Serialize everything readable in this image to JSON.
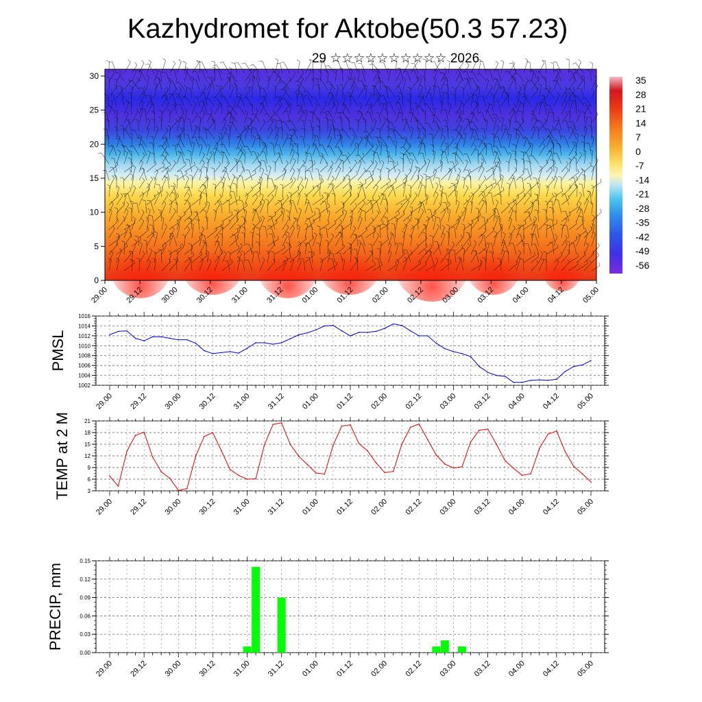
{
  "title": "Kazhydromet for Aktobe(50.3 57.23)",
  "subtitle": "29 ☆☆☆☆☆☆☆☆☆☆ 2026",
  "time_labels": [
    "29.00",
    "29.12",
    "30.00",
    "30.12",
    "31.00",
    "31.12",
    "01.00",
    "01.12",
    "02.00",
    "02.12",
    "03.00",
    "03.12",
    "04.00",
    "04.12",
    "05.00"
  ],
  "chart_data": [
    {
      "type": "heatmap",
      "description_key": "vertical-profile",
      "yticks": [
        0,
        5,
        10,
        15,
        20,
        25,
        30
      ],
      "ylim": [
        0,
        31
      ],
      "colorbar_labels": [
        "35",
        "28",
        "21",
        "14",
        "7",
        "0",
        "-7",
        "-14",
        "-21",
        "-28",
        "-35",
        "-42",
        "-49",
        "-56"
      ],
      "colorbar_range": [
        -60,
        38
      ]
    },
    {
      "type": "line",
      "ylabel": "PMSL",
      "ylim": [
        1002,
        1016
      ],
      "yticks": [
        "1002",
        "1004",
        "1006",
        "1008",
        "1010",
        "1012",
        "1014",
        "1016"
      ],
      "color": "#0000cc",
      "x": [
        0,
        1,
        2,
        3,
        4,
        5,
        6,
        7,
        8,
        9,
        10,
        11,
        12,
        13,
        14,
        15,
        16,
        17,
        18,
        19,
        20,
        21,
        22,
        23,
        24,
        25,
        26,
        27,
        28,
        29,
        30,
        31,
        32,
        33,
        34,
        35,
        36,
        37,
        38,
        39,
        40,
        41,
        42,
        43,
        44,
        45,
        46,
        47,
        48,
        49,
        50,
        51,
        52,
        53,
        54,
        55,
        56
      ],
      "values": [
        1012.2,
        1012.9,
        1013.0,
        1011.5,
        1011.0,
        1011.8,
        1011.8,
        1011.5,
        1011.2,
        1011.2,
        1010.5,
        1009.0,
        1008.4,
        1008.6,
        1008.8,
        1008.5,
        1009.5,
        1010.6,
        1010.6,
        1010.3,
        1010.6,
        1011.4,
        1012.2,
        1012.6,
        1013.2,
        1014.0,
        1014.1,
        1013.0,
        1012.0,
        1012.7,
        1012.7,
        1012.9,
        1013.5,
        1014.4,
        1014.1,
        1013.0,
        1012.0,
        1012.0,
        1010.5,
        1009.4,
        1008.8,
        1008.4,
        1007.8,
        1005.8,
        1004.6,
        1004.0,
        1003.8,
        1002.6,
        1002.6,
        1003.0,
        1003.1,
        1003.0,
        1003.2,
        1004.8,
        1005.8,
        1006.1,
        1007.0
      ]
    },
    {
      "type": "line",
      "ylabel": "TEMP at 2 M",
      "ylim": [
        3,
        21
      ],
      "yticks": [
        "3",
        "6",
        "9",
        "12",
        "15",
        "18",
        "21"
      ],
      "color": "#dd0000",
      "x": [
        0,
        1,
        2,
        3,
        4,
        5,
        6,
        7,
        8,
        9,
        10,
        11,
        12,
        13,
        14,
        15,
        16,
        17,
        18,
        19,
        20,
        21,
        22,
        23,
        24,
        25,
        26,
        27,
        28,
        29,
        30,
        31,
        32,
        33,
        34,
        35,
        36,
        37,
        38,
        39,
        40,
        41,
        42,
        43,
        44,
        45,
        46,
        47,
        48,
        49,
        50,
        51,
        52,
        53,
        54,
        55,
        56
      ],
      "values": [
        6.8,
        4.2,
        13.2,
        17.3,
        18.1,
        11.7,
        7.9,
        6.2,
        3.1,
        3.6,
        11.9,
        17.0,
        18.0,
        13.3,
        8.5,
        7.0,
        6.0,
        6.1,
        14.8,
        20.1,
        20.5,
        15.0,
        11.9,
        9.8,
        7.6,
        7.3,
        14.7,
        19.7,
        20.0,
        15.2,
        13.3,
        10.2,
        7.7,
        8.0,
        15.0,
        19.4,
        20.2,
        16.2,
        12.2,
        9.9,
        8.9,
        9.2,
        15.6,
        18.6,
        18.9,
        15.0,
        10.8,
        8.8,
        7.0,
        7.4,
        13.9,
        17.6,
        18.4,
        13.1,
        9.3,
        7.4,
        5.3
      ]
    },
    {
      "type": "bar",
      "ylabel": "PRECIP, mm",
      "ylim": [
        0,
        0.15
      ],
      "yticks": [
        "0.00",
        "0.03",
        "0.06",
        "0.09",
        "0.12",
        "0.15"
      ],
      "color": "#00ff00",
      "x": [
        16,
        17,
        20,
        38,
        39,
        41
      ],
      "values": [
        0.01,
        0.14,
        0.09,
        0.01,
        0.02,
        0.01
      ]
    }
  ]
}
